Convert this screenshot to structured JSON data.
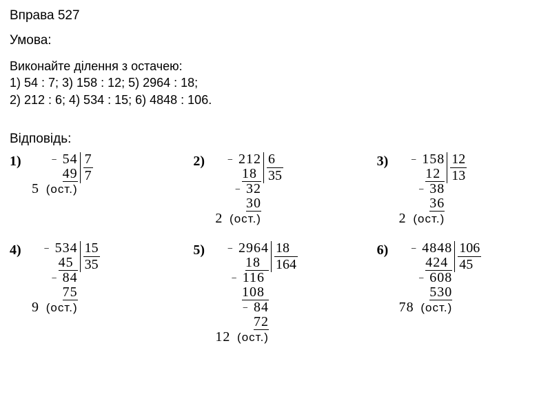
{
  "title": "Вправа 527",
  "condition_label": "Умова:",
  "instruction": "Виконайте ділення з остачею:",
  "problems_line1": "1) 54 : 7;   3) 158 : 12; 5) 2964 : 18;",
  "problems_line2": "2) 212 : 6; 4) 534 : 15; 6) 4848 : 106.",
  "answer_label": "Відповідь:",
  "remainder_label": "(ост.)",
  "solutions": [
    {
      "num": "1)",
      "divisor": "7",
      "quotient": "7",
      "rows": [
        {
          "text": " 54",
          "minus": true
        },
        {
          "text": "49",
          "underline": true
        },
        {
          "text": "5",
          "ost": true
        }
      ]
    },
    {
      "num": "2)",
      "divisor": "6   ",
      "quotient": "35",
      "rows": [
        {
          "text": " 212",
          "minus": true
        },
        {
          "text": "18 ",
          "underline": true
        },
        {
          "text": " 32",
          "minus": true
        },
        {
          "text": "30",
          "underline": true
        },
        {
          "text": "2",
          "ost": true
        }
      ]
    },
    {
      "num": "3)",
      "divisor": "12",
      "quotient": "13",
      "rows": [
        {
          "text": " 158",
          "minus": true
        },
        {
          "text": "12 ",
          "underline": true
        },
        {
          "text": " 38",
          "minus": true
        },
        {
          "text": "36",
          "underline": true
        },
        {
          "text": "2",
          "ost": true
        }
      ]
    },
    {
      "num": "4)",
      "divisor": "15",
      "quotient": "35",
      "rows": [
        {
          "text": " 534",
          "minus": true
        },
        {
          "text": "45 ",
          "underline": true
        },
        {
          "text": " 84",
          "minus": true
        },
        {
          "text": "75",
          "underline": true
        },
        {
          "text": "9",
          "ost": true
        }
      ]
    },
    {
      "num": "5)",
      "divisor": "18  ",
      "quotient": "164",
      "rows": [
        {
          "text": " 2964",
          "minus": true
        },
        {
          "text": "18  ",
          "underline": true
        },
        {
          "text": " 116 ",
          "minus": true
        },
        {
          "text": "108 ",
          "underline": true
        },
        {
          "text": " 84",
          "minus": true
        },
        {
          "text": "72",
          "underline": true
        },
        {
          "text": "12",
          "ost": true
        }
      ]
    },
    {
      "num": "6)",
      "divisor": "106",
      "quotient": "45",
      "rows": [
        {
          "text": " 4848",
          "minus": true
        },
        {
          "text": "424 ",
          "underline": true
        },
        {
          "text": " 608",
          "minus": true
        },
        {
          "text": "530",
          "underline": true
        },
        {
          "text": "78",
          "ost": true
        }
      ]
    }
  ]
}
